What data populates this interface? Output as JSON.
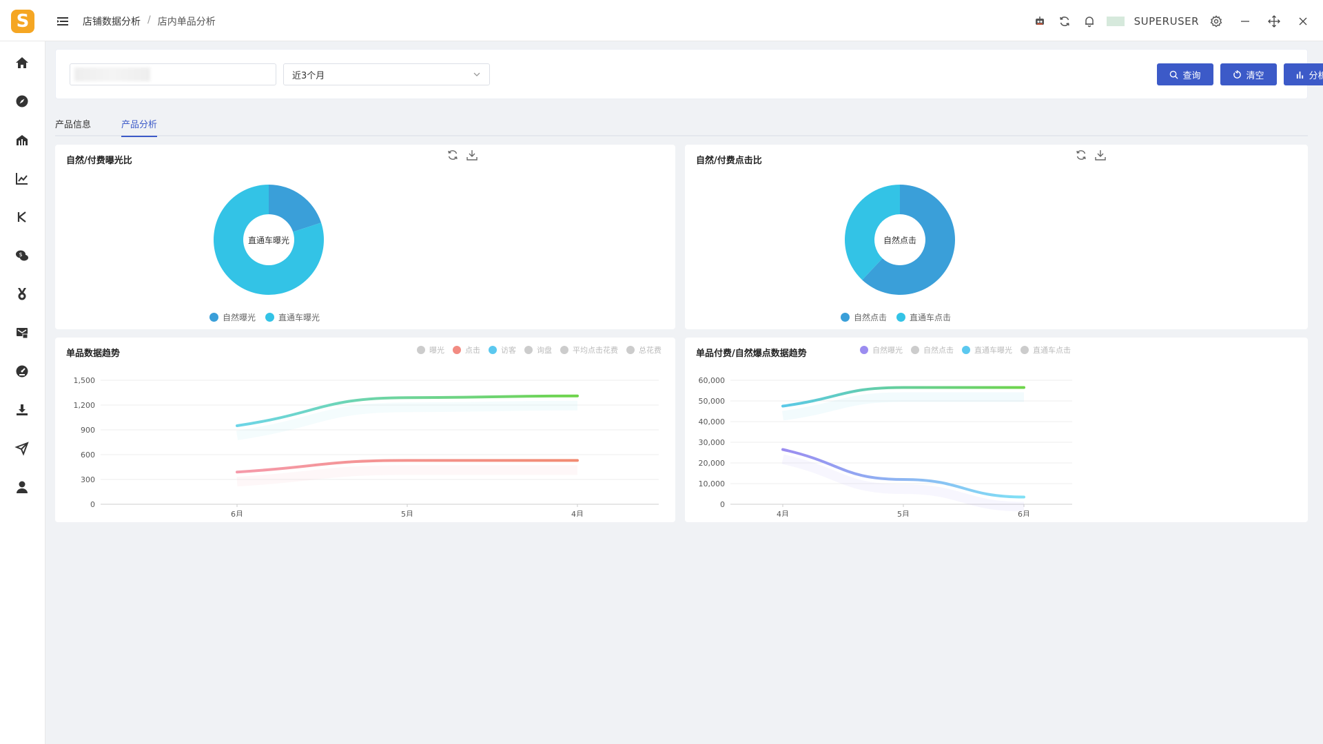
{
  "app": {
    "logo_letter": "S",
    "user": "SUPERUSER"
  },
  "breadcrumb": {
    "parent": "店铺数据分析",
    "separator": "/",
    "current": "店内单品分析"
  },
  "filters": {
    "period_selected": "近3个月"
  },
  "buttons": {
    "query": "查询",
    "clear": "清空",
    "analyze": "分析"
  },
  "tabs": [
    {
      "label": "产品信息",
      "active": false
    },
    {
      "label": "产品分析",
      "active": true
    }
  ],
  "colors": {
    "accent": "#3c5ac8",
    "blue": "#3a9fd9",
    "cyan": "#33c3e6"
  },
  "cards": {
    "exposure": {
      "title": "自然/付费曝光比",
      "center_label": "直通车曝光",
      "legend": [
        {
          "name": "自然曝光",
          "color": "#3a9fd9"
        },
        {
          "name": "直通车曝光",
          "color": "#33c3e6"
        }
      ]
    },
    "clicks": {
      "title": "自然/付费点击比",
      "center_label": "自然点击",
      "legend": [
        {
          "name": "自然点击",
          "color": "#3a9fd9"
        },
        {
          "name": "直通车点击",
          "color": "#33c3e6"
        }
      ]
    },
    "trend": {
      "title": "单品数据趋势",
      "legend": [
        {
          "name": "曝光",
          "color": "#cccccc"
        },
        {
          "name": "点击",
          "color": "#f28b82"
        },
        {
          "name": "访客",
          "color": "#5bc8ef"
        },
        {
          "name": "询盘",
          "color": "#cccccc"
        },
        {
          "name": "平均点击花费",
          "color": "#cccccc"
        },
        {
          "name": "总花费",
          "color": "#cccccc"
        }
      ]
    },
    "paid_trend": {
      "title": "单品付费/自然爆点数据趋势",
      "legend": [
        {
          "name": "自然曝光",
          "color": "#9b8cf0"
        },
        {
          "name": "自然点击",
          "color": "#cccccc"
        },
        {
          "name": "直通车曝光",
          "color": "#5bc8ef"
        },
        {
          "name": "直通车点击",
          "color": "#cccccc"
        }
      ]
    }
  },
  "chart_data": [
    {
      "type": "pie",
      "title": "自然/付费曝光比",
      "categories": [
        "自然曝光",
        "直通车曝光"
      ],
      "values": [
        20,
        80
      ]
    },
    {
      "type": "pie",
      "title": "自然/付费点击比",
      "categories": [
        "自然点击",
        "直通车点击"
      ],
      "values": [
        62,
        38
      ]
    },
    {
      "type": "line",
      "title": "单品数据趋势",
      "categories": [
        "6月",
        "5月",
        "4月"
      ],
      "ylim": [
        0,
        1500
      ],
      "yticks": [
        "0",
        "300",
        "600",
        "900",
        "1,200",
        "1,500"
      ],
      "series": [
        {
          "name": "访客",
          "values": [
            950,
            1290,
            1310
          ]
        },
        {
          "name": "点击",
          "values": [
            390,
            530,
            530
          ]
        }
      ]
    },
    {
      "type": "line",
      "title": "单品付费/自然爆点数据趋势",
      "categories": [
        "4月",
        "5月",
        "6月"
      ],
      "ylim": [
        0,
        60000
      ],
      "yticks": [
        "0",
        "10,000",
        "20,000",
        "30,000",
        "40,000",
        "50,000",
        "60,000"
      ],
      "series": [
        {
          "name": "直通车曝光",
          "values": [
            47500,
            56500,
            56500
          ]
        },
        {
          "name": "自然曝光",
          "values": [
            26500,
            12000,
            3500
          ]
        }
      ]
    }
  ]
}
